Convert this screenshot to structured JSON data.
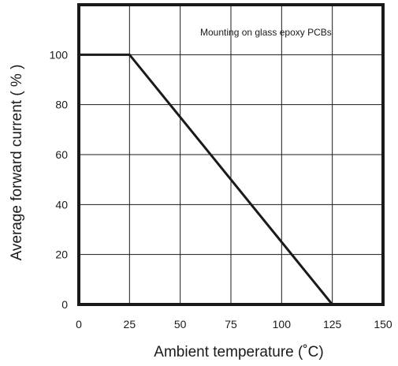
{
  "chart_data": {
    "type": "line",
    "title": "",
    "xlabel": "Ambient temperature (˚C)",
    "ylabel": "Average forward current ( % )",
    "xlim": [
      0,
      150
    ],
    "ylim": [
      0,
      120
    ],
    "x_ticks": [
      0,
      25,
      50,
      75,
      100,
      125,
      150
    ],
    "y_ticks": [
      0,
      20,
      40,
      60,
      80,
      100
    ],
    "x_tick_labels": [
      "0",
      "25",
      "50",
      "75",
      "100",
      "125",
      "150"
    ],
    "y_tick_labels": [
      "0",
      "20",
      "40",
      "60",
      "80",
      "100"
    ],
    "grid": true,
    "annotation": "Mounting on glass epoxy PCBs",
    "series": [
      {
        "x": [
          0,
          25,
          125
        ],
        "y": [
          100,
          100,
          0
        ],
        "color": "#1a1a1a"
      }
    ]
  }
}
